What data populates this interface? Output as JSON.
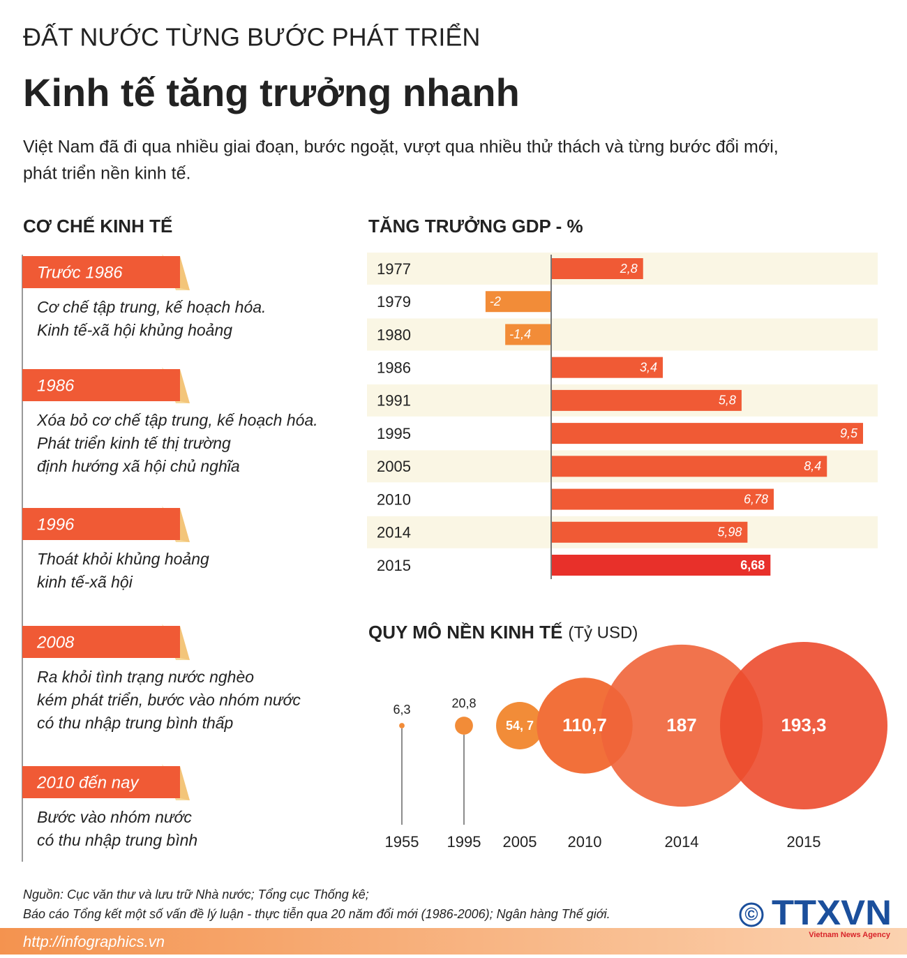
{
  "header": {
    "kicker": "ĐẤT NƯỚC TỪNG BƯỚC PHÁT TRIỂN",
    "title": "Kinh tế tăng trưởng nhanh",
    "intro": [
      "Việt Nam đã đi qua nhiều giai đoạn, bước ngoặt, vượt qua nhiều thử thách và từng bước đổi mới,",
      "phát triển nền kinh tế."
    ]
  },
  "timeline": {
    "title": "CƠ CHẾ KINH TẾ",
    "color": "#f05a35",
    "items": [
      {
        "label": "Trước 1986",
        "lines": [
          "Cơ chế tập trung, kế hoạch hóa.",
          "Kinh tế-xã hội khủng hoảng"
        ]
      },
      {
        "label": "1986",
        "lines": [
          "Xóa bỏ cơ chế tập trung, kế hoạch hóa.",
          "Phát triển kinh tế thị trường",
          "định hướng xã hội chủ nghĩa"
        ]
      },
      {
        "label": "1996",
        "lines": [
          "Thoát khỏi khủng hoảng",
          "kinh tế-xã hội"
        ]
      },
      {
        "label": "2008",
        "lines": [
          "Ra khỏi tình trạng nước nghèo",
          "kém phát triển, bước vào nhóm nước",
          "có thu nhập trung bình thấp"
        ]
      },
      {
        "label": "2010 đến nay",
        "lines": [
          "Bước vào nhóm nước",
          "có thu nhập trung bình"
        ]
      }
    ]
  },
  "chart_data": [
    {
      "type": "bar",
      "orientation": "horizontal",
      "title": "TĂNG TRƯỞNG GDP - %",
      "categories": [
        "1977",
        "1979",
        "1980",
        "1986",
        "1991",
        "1995",
        "2005",
        "2010",
        "2014",
        "2015"
      ],
      "values": [
        2.8,
        -2,
        -1.4,
        3.4,
        5.8,
        9.5,
        8.4,
        6.78,
        5.98,
        6.68
      ],
      "value_labels": [
        "2,8",
        "-2",
        "-1,4",
        "3,4",
        "5,8",
        "9,5",
        "8,4",
        "6,78",
        "5,98",
        "6,68"
      ],
      "colors": [
        "#f05a35",
        "#f28c38",
        "#f28c38",
        "#f05a35",
        "#f05a35",
        "#f05a35",
        "#f05a35",
        "#f05a35",
        "#f05a35",
        "#e8302a"
      ]
    },
    {
      "type": "bubble",
      "title": "QUY MÔ NỀN KINH TẾ",
      "unit": "(Tỷ USD)",
      "categories": [
        "1955",
        "1995",
        "2005",
        "2010",
        "2014",
        "2015"
      ],
      "values": [
        6.3,
        20.8,
        54.7,
        110.7,
        187,
        193.3
      ],
      "value_labels": [
        "6,3",
        "20,8",
        "54, 7",
        "110,7",
        "187",
        "193,3"
      ],
      "colors": [
        "#f28c38",
        "#f28c38",
        "#f28c38",
        "#f2703a",
        "#f0643a",
        "#ec4b2e"
      ]
    }
  ],
  "footer": {
    "sources": [
      "Nguồn: Cục văn thư và lưu trữ Nhà nước; Tổng cục Thống kê;",
      "Báo cáo Tổng kết một số vấn đề lý luận - thực tiễn qua 20 năm đổi mới (1986-2006); Ngân hàng Thế giới."
    ],
    "url": "http://infographics.vn",
    "copyright": "©",
    "logo": "TTXVN",
    "agency": "Vietnam News Agency"
  }
}
